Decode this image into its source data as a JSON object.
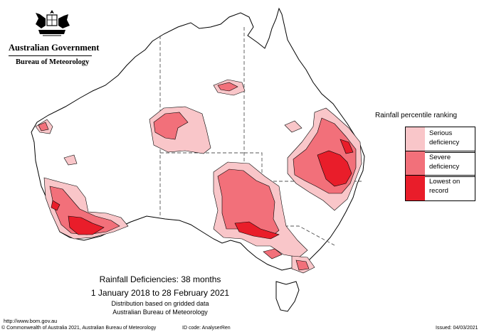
{
  "header": {
    "government": "Australian Government",
    "bureau": "Bureau of Meteorology"
  },
  "legend": {
    "title": "Rainfall percentile ranking",
    "items": [
      {
        "label": "Serious deficiency",
        "color": "#f9c6c9"
      },
      {
        "label": "Severe deficiency",
        "color": "#f2707a"
      },
      {
        "label": "Lowest on record",
        "color": "#e91d2a"
      }
    ]
  },
  "map": {
    "region": "Australia",
    "colors": {
      "land": "#ffffff",
      "coast": "#000000",
      "border": "#555555",
      "serious": "#f9c6c9",
      "severe": "#f2707a",
      "lowest": "#e91d2a"
    }
  },
  "caption": {
    "title": "Rainfall Deficiencies: 38 months",
    "period": "1 January 2018 to 28 February 2021",
    "note1": "Distribution based on gridded data",
    "note2": "Australian Bureau of Meteorology"
  },
  "footer": {
    "url": "http://www.bom.gov.au",
    "copyright": "© Commonwealth of Australia 2021, Australian Bureau of Meteorology",
    "id_code": "ID code: AnalyserRen",
    "issued": "Issued: 04/03/2021"
  }
}
